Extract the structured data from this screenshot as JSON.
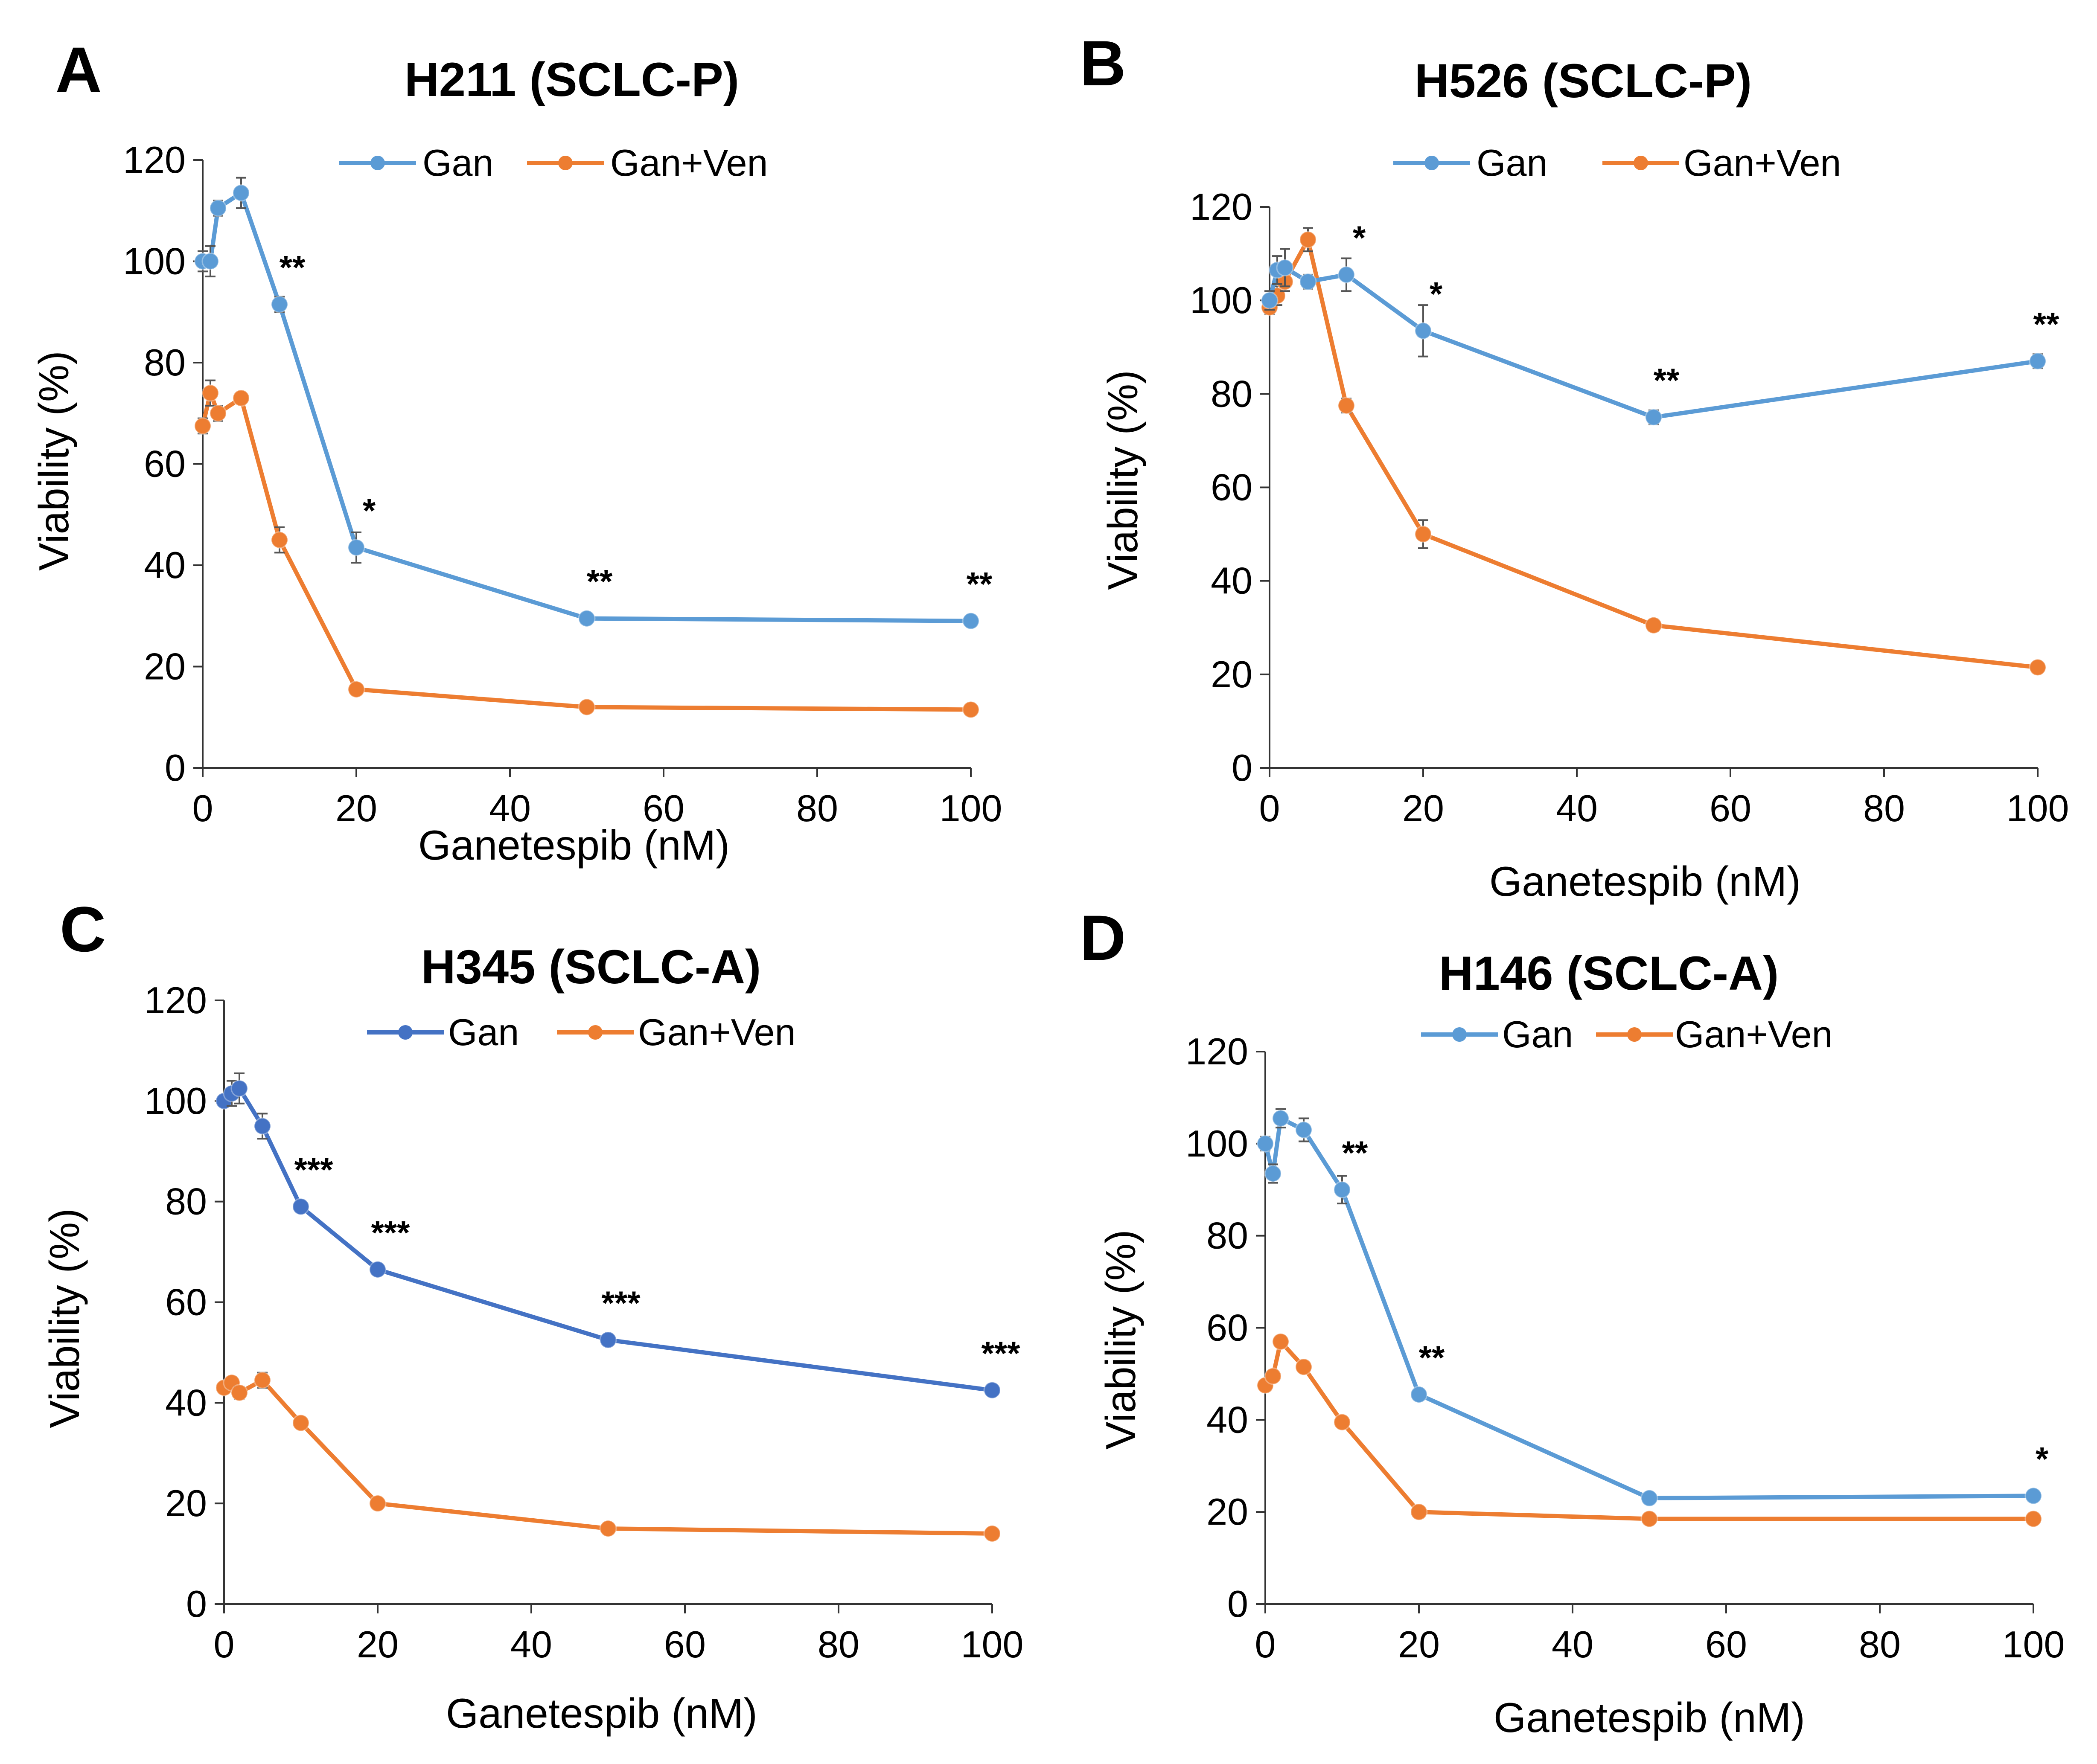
{
  "figure": {
    "panels": [
      {
        "letter": "A",
        "title": "H211 (SCLC-P)",
        "xlabel": "Ganetespib (nM)",
        "ylabel": "Viability (%)",
        "legend": [
          "Gan",
          "Gan+Ven"
        ]
      },
      {
        "letter": "B",
        "title": "H526 (SCLC-P)",
        "xlabel": "Ganetespib (nM)",
        "ylabel": "Viability (%)",
        "legend": [
          "Gan",
          "Gan+Ven"
        ]
      },
      {
        "letter": "C",
        "title": "H345 (SCLC-A)",
        "xlabel": "Ganetespib (nM)",
        "ylabel": "Viability (%)",
        "legend": [
          "Gan",
          "Gan+Ven"
        ]
      },
      {
        "letter": "D",
        "title": "H146 (SCLC-A)",
        "xlabel": "Ganetespib (nM)",
        "ylabel": "Viability (%)",
        "legend": [
          "Gan",
          "Gan+Ven"
        ]
      }
    ]
  },
  "chart_data": [
    {
      "type": "line",
      "title": "H211 (SCLC-P)",
      "xlabel": "Ganetespib (nM)",
      "ylabel": "Viability (%)",
      "xlim": [
        0,
        100
      ],
      "ylim": [
        0,
        120
      ],
      "xticks": [
        "0",
        "20",
        "40",
        "60",
        "80",
        "100"
      ],
      "yticks": [
        "0",
        "20",
        "40",
        "60",
        "80",
        "100",
        "120"
      ],
      "legend_position": "top",
      "series": [
        {
          "name": "Gan",
          "color": "#5B9BD5",
          "x": [
            0,
            1,
            2,
            5,
            10,
            20,
            50,
            100
          ],
          "y": [
            100,
            100,
            110.5,
            113.5,
            91.5,
            43.5,
            29.5,
            29
          ],
          "err": [
            2,
            3,
            1.5,
            3,
            1.5,
            3,
            1,
            1
          ]
        },
        {
          "name": "Gan+Ven",
          "color": "#ED7D31",
          "x": [
            0,
            1,
            2,
            5,
            10,
            20,
            50,
            100
          ],
          "y": [
            67.5,
            74,
            70,
            73,
            45,
            15.5,
            12,
            11.5
          ],
          "err": [
            1.5,
            2.5,
            1.5,
            1,
            2.5,
            0.8,
            0.8,
            0.8
          ]
        }
      ],
      "annotations": [
        {
          "x": 10,
          "y": 91.5,
          "text": "**"
        },
        {
          "x": 20,
          "y": 43.5,
          "text": "*"
        },
        {
          "x": 50,
          "y": 29.5,
          "text": "**"
        },
        {
          "x": 100,
          "y": 29,
          "text": "**"
        }
      ]
    },
    {
      "type": "line",
      "title": "H526 (SCLC-P)",
      "xlabel": "Ganetespib (nM)",
      "ylabel": "Viability (%)",
      "xlim": [
        0,
        100
      ],
      "ylim": [
        0,
        120
      ],
      "xticks": [
        "0",
        "20",
        "40",
        "60",
        "80",
        "100"
      ],
      "yticks": [
        "0",
        "20",
        "40",
        "60",
        "80",
        "100",
        "120"
      ],
      "legend_position": "top",
      "series": [
        {
          "name": "Gan",
          "color": "#5B9BD5",
          "x": [
            0,
            1,
            2,
            5,
            10,
            20,
            50,
            100
          ],
          "y": [
            100,
            106.5,
            107,
            104,
            105.5,
            93.5,
            75,
            87
          ],
          "err": [
            2,
            3,
            4,
            1.5,
            3.5,
            5.5,
            1.5,
            1.5
          ]
        },
        {
          "name": "Gan+Ven",
          "color": "#ED7D31",
          "x": [
            0,
            1,
            2,
            5,
            10,
            20,
            50,
            100
          ],
          "y": [
            98.5,
            101,
            104,
            113,
            77.5,
            50,
            30.5,
            21.5
          ],
          "err": [
            1.5,
            2,
            2,
            2.5,
            1.5,
            3,
            1.2,
            1
          ]
        }
      ],
      "annotations": [
        {
          "x": 10,
          "y": 105.5,
          "text": "*"
        },
        {
          "x": 20,
          "y": 93.5,
          "text": "*"
        },
        {
          "x": 50,
          "y": 75,
          "text": "**"
        },
        {
          "x": 100,
          "y": 87,
          "text": "**"
        }
      ]
    },
    {
      "type": "line",
      "title": "H345 (SCLC-A)",
      "xlabel": "Ganetespib (nM)",
      "ylabel": "Viability (%)",
      "xlim": [
        0,
        100
      ],
      "ylim": [
        0,
        120
      ],
      "xticks": [
        "0",
        "20",
        "40",
        "60",
        "80",
        "100"
      ],
      "yticks": [
        "0",
        "20",
        "40",
        "60",
        "80",
        "100",
        "120"
      ],
      "legend_position": "top",
      "series": [
        {
          "name": "Gan",
          "color": "#4472C4",
          "x": [
            0,
            1,
            2,
            5,
            10,
            20,
            50,
            100
          ],
          "y": [
            100,
            101.5,
            102.5,
            95,
            79,
            66.5,
            52.5,
            42.5
          ],
          "err": [
            1,
            2.5,
            3,
            2.5,
            1,
            1,
            1,
            0.8
          ]
        },
        {
          "name": "Gan+Ven",
          "color": "#ED7D31",
          "x": [
            0,
            1,
            2,
            5,
            10,
            20,
            50,
            100
          ],
          "y": [
            43,
            44,
            42,
            44.5,
            36,
            20,
            15,
            14
          ],
          "err": [
            0.8,
            1.2,
            1.2,
            1.5,
            0.8,
            0.6,
            0.6,
            0.6
          ]
        }
      ],
      "annotations": [
        {
          "x": 10,
          "y": 79,
          "text": "***"
        },
        {
          "x": 20,
          "y": 66.5,
          "text": "***"
        },
        {
          "x": 50,
          "y": 52.5,
          "text": "***"
        },
        {
          "x": 100,
          "y": 42.5,
          "text": "***"
        }
      ]
    },
    {
      "type": "line",
      "title": "H146 (SCLC-A)",
      "xlabel": "Ganetespib (nM)",
      "ylabel": "Viability (%)",
      "xlim": [
        0,
        100
      ],
      "ylim": [
        0,
        120
      ],
      "xticks": [
        "0",
        "20",
        "40",
        "60",
        "80",
        "100"
      ],
      "yticks": [
        "0",
        "20",
        "40",
        "60",
        "80",
        "100",
        "120"
      ],
      "legend_position": "top",
      "series": [
        {
          "name": "Gan",
          "color": "#5B9BD5",
          "x": [
            0,
            1,
            2,
            5,
            10,
            20,
            50,
            100
          ],
          "y": [
            100,
            93.5,
            105.5,
            103,
            90,
            45.5,
            23,
            23.5
          ],
          "err": [
            1.5,
            2,
            2,
            2.5,
            3,
            1,
            0.8,
            0.8
          ]
        },
        {
          "name": "Gan+Ven",
          "color": "#ED7D31",
          "x": [
            0,
            1,
            2,
            5,
            10,
            20,
            50,
            100
          ],
          "y": [
            47.5,
            49.5,
            57,
            51.5,
            39.5,
            20,
            18.5,
            18.5
          ],
          "err": [
            1,
            1,
            1.2,
            1,
            1,
            0.6,
            0.6,
            0.6
          ]
        }
      ],
      "annotations": [
        {
          "x": 10,
          "y": 90,
          "text": "**"
        },
        {
          "x": 20,
          "y": 45.5,
          "text": "**"
        },
        {
          "x": 100,
          "y": 23.5,
          "text": "*"
        }
      ]
    }
  ]
}
